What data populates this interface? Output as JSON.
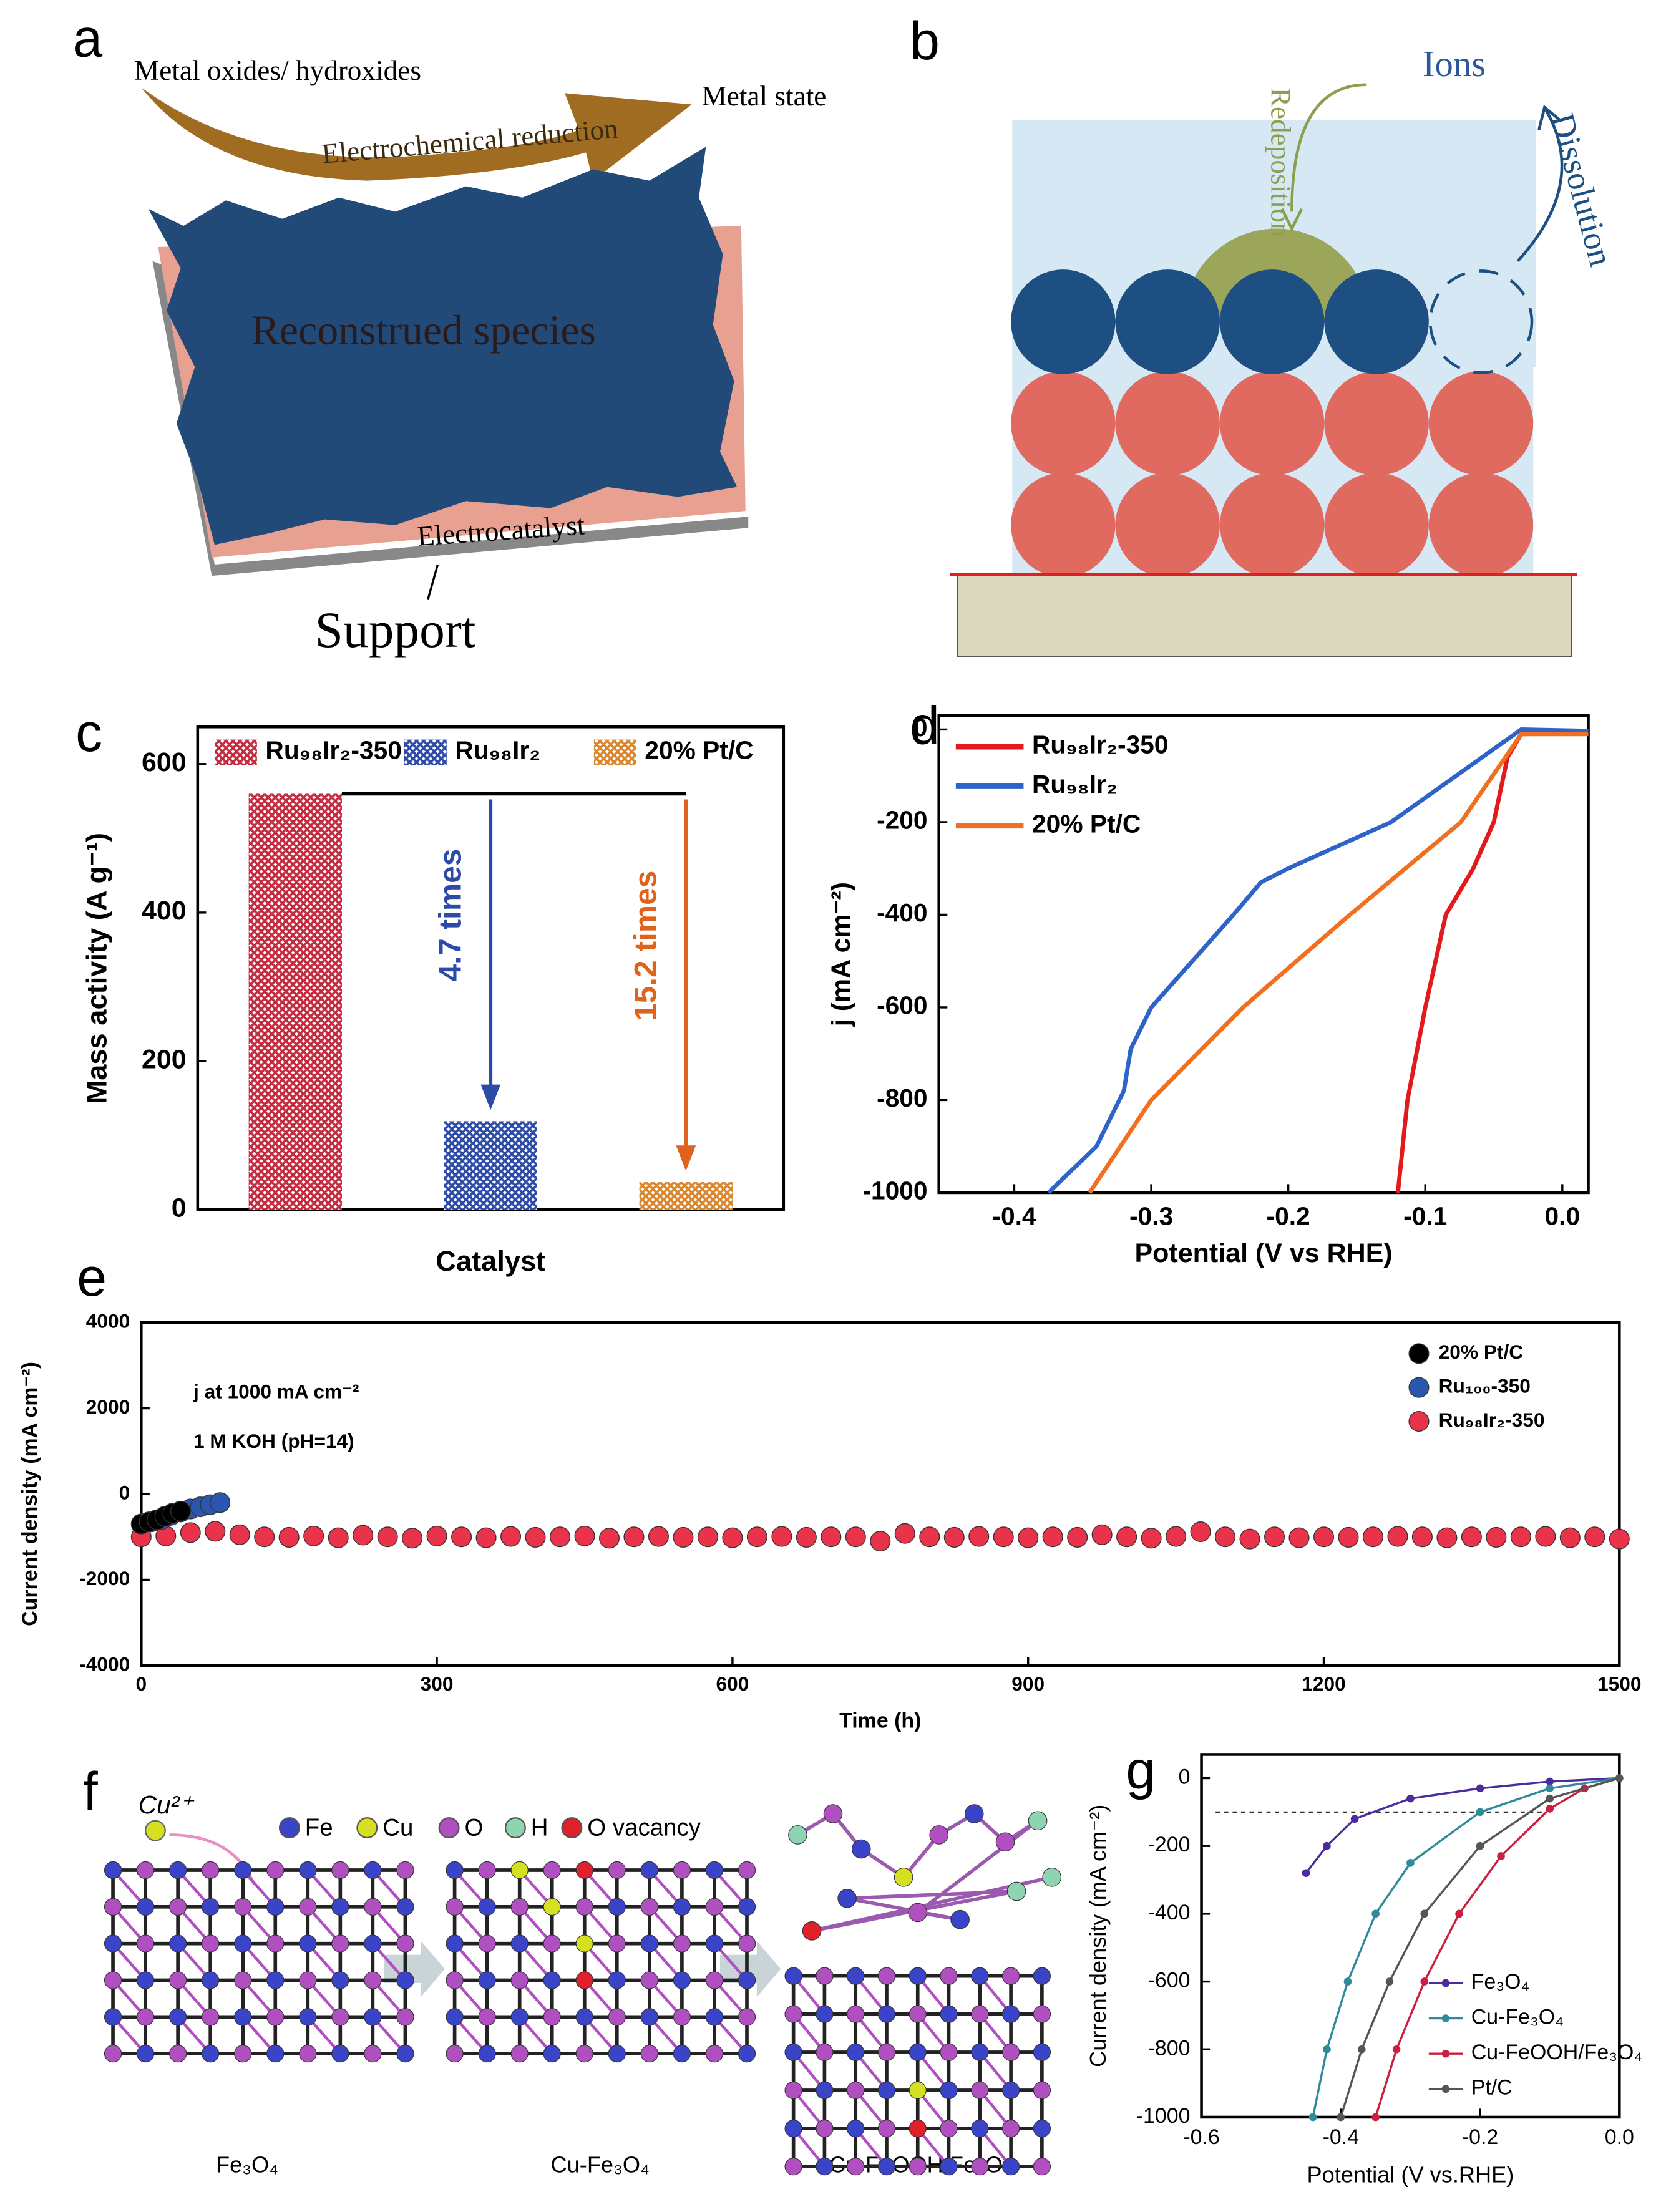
{
  "panel_labels": [
    "a",
    "b",
    "c",
    "d",
    "e",
    "f",
    "g"
  ],
  "diagram_a": {
    "arrow_start": "Metal oxides/ hydroxides",
    "arrow_end": "Metal state",
    "arrow_label": "Electrochemical reduction",
    "top_layer": "Reconstrued species",
    "middle_layer": "Electrocatalyst",
    "bottom_layer": "Support"
  },
  "diagram_b": {
    "ions": "Ions",
    "redeposition": "Redeposition",
    "dissolution": "Dissolution"
  },
  "diagram_f": {
    "ion": "Cu²⁺",
    "legend": [
      "Fe",
      "Cu",
      "O",
      "H",
      "O vacancy"
    ],
    "stages": [
      "Fe₃O₄",
      "Cu-Fe₃O₄",
      "Cu-FeOOH/Fe₃O₄"
    ]
  },
  "chart_data": [
    {
      "type": "bar",
      "xlabel": "Catalyst",
      "ylabel": "Mass activity (A g⁻¹)",
      "ylim": [
        0,
        650
      ],
      "yticks": [
        0,
        200,
        400,
        600
      ],
      "legend": "upper left",
      "series": [
        {
          "name": "Ru₉₈Ir₂-350",
          "color": "#c62a3e",
          "values": [
            560
          ]
        },
        {
          "name": "Ru₉₈Ir₂",
          "color": "#2c4aa8",
          "values": [
            119
          ]
        },
        {
          "name": "20% Pt/C",
          "color": "#d9862c",
          "values": [
            37
          ]
        }
      ],
      "annotations": [
        {
          "text": "4.7 times",
          "color": "#2c4aa8"
        },
        {
          "text": "15.2 times",
          "color": "#e0621c"
        }
      ]
    },
    {
      "type": "line",
      "xlabel": "Potential (V vs RHE)",
      "ylabel": "j (mA cm⁻²)",
      "xlim": [
        -0.455,
        0.019
      ],
      "ylim": [
        -1000,
        30
      ],
      "xticks": [
        -0.4,
        -0.3,
        -0.2,
        -0.1,
        {
          "value": 0,
          "label": "0.0"
        }
      ],
      "yticks": [
        -1000,
        -800,
        -600,
        -400,
        -200,
        0
      ],
      "legend": "upper left",
      "series": [
        {
          "name": "Ru₉₈Ir₂-350",
          "color": "#e31a1c",
          "x": [
            0.019,
            -0.03,
            -0.04,
            -0.05,
            -0.065,
            -0.085,
            -0.1,
            -0.113,
            -0.12
          ],
          "values": [
            -8,
            -10,
            -60,
            -200,
            -300,
            -400,
            -600,
            -800,
            -1000
          ]
        },
        {
          "name": "Ru₉₈Ir₂",
          "color": "#2e64c8",
          "x": [
            0.019,
            -0.03,
            -0.125,
            -0.2,
            -0.22,
            -0.24,
            -0.3,
            -0.315,
            -0.32,
            -0.34,
            -0.375
          ],
          "values": [
            -3,
            0,
            -200,
            -300,
            -330,
            -400,
            -600,
            -690,
            -780,
            -900,
            -1000
          ]
        },
        {
          "name": "20% Pt/C",
          "color": "#f07020",
          "x": [
            0.019,
            -0.03,
            -0.074,
            -0.155,
            -0.233,
            -0.3,
            -0.345
          ],
          "values": [
            -10,
            -10,
            -200,
            -400,
            -600,
            -800,
            -1000
          ]
        }
      ]
    },
    {
      "type": "scatter",
      "xlabel": "Time (h)",
      "ylabel": "Current density (mA cm⁻²)",
      "xlim": [
        0,
        1500
      ],
      "ylim": [
        -4000,
        4000
      ],
      "xticks": [
        0,
        300,
        600,
        900,
        1200,
        1500
      ],
      "yticks": [
        -4000,
        -2000,
        0,
        2000,
        4000
      ],
      "legend": "upper right",
      "annotations": [
        {
          "text": "j at 1000 mA cm⁻²"
        },
        {
          "text": "1 M KOH (pH=14)"
        }
      ],
      "series": [
        {
          "name": "20% Pt/C",
          "color": "#000000",
          "x": [
            0,
            8,
            16,
            24,
            32,
            40
          ],
          "values": [
            -700,
            -650,
            -600,
            -520,
            -450,
            -400
          ]
        },
        {
          "name": "Ru₁₀₀-350",
          "color": "#2a56b0",
          "x": [
            0,
            10,
            20,
            30,
            40,
            50,
            60,
            70,
            80
          ],
          "values": [
            -700,
            -650,
            -600,
            -500,
            -420,
            -350,
            -300,
            -250,
            -200
          ]
        },
        {
          "name": "Ru₉₈Ir₂-350",
          "color": "#e8334a",
          "x": [
            0,
            25,
            50,
            75,
            100,
            125,
            150,
            175,
            200,
            225,
            250,
            275,
            300,
            325,
            350,
            375,
            400,
            425,
            450,
            475,
            500,
            525,
            550,
            575,
            600,
            625,
            650,
            675,
            700,
            725,
            750,
            775,
            800,
            825,
            850,
            875,
            900,
            925,
            950,
            975,
            1000,
            1025,
            1050,
            1075,
            1100,
            1125,
            1150,
            1175,
            1200,
            1225,
            1250,
            1275,
            1300,
            1325,
            1350,
            1375,
            1400,
            1425,
            1450,
            1475,
            1500
          ],
          "values": [
            -1000,
            -980,
            -900,
            -870,
            -950,
            -1000,
            -1010,
            -980,
            -1020,
            -960,
            -1000,
            -1030,
            -980,
            -1000,
            -1020,
            -990,
            -1010,
            -1000,
            -980,
            -1030,
            -1000,
            -990,
            -1010,
            -1000,
            -1020,
            -1000,
            -990,
            -1010,
            -1000,
            -1000,
            -1100,
            -920,
            -1000,
            -1010,
            -990,
            -1000,
            -1020,
            -1000,
            -1010,
            -950,
            -1000,
            -1030,
            -990,
            -880,
            -1000,
            -1050,
            -1000,
            -1020,
            -1000,
            -1010,
            -1000,
            -990,
            -1000,
            -1020,
            -1000,
            -1010,
            -1000,
            -990,
            -1020,
            -1000,
            -1050
          ]
        }
      ]
    },
    {
      "type": "line",
      "markers": true,
      "xlabel": "Potential (V vs.RHE)",
      "ylabel": "Current density (mA cm⁻²)",
      "xlim": [
        -0.6,
        0
      ],
      "ylim": [
        -1000,
        70
      ],
      "xticks": [
        -0.6,
        -0.4,
        -0.2,
        {
          "value": 0,
          "label": "0.0"
        }
      ],
      "yticks": [
        -1000,
        -800,
        -600,
        -400,
        -200,
        0
      ],
      "legend": "lower right",
      "hline": -100,
      "series": [
        {
          "name": "Fe₃O₄",
          "color": "#4b2b9e",
          "x": [
            -0.45,
            -0.42,
            -0.38,
            -0.3,
            -0.2,
            -0.1,
            0
          ],
          "values": [
            -280,
            -200,
            -120,
            -60,
            -30,
            -10,
            0
          ]
        },
        {
          "name": "Cu-Fe₃O₄",
          "color": "#2e8b9a",
          "x": [
            -0.44,
            -0.42,
            -0.39,
            -0.35,
            -0.3,
            -0.2,
            -0.1,
            0
          ],
          "values": [
            -1000,
            -800,
            -600,
            -400,
            -250,
            -100,
            -30,
            0
          ]
        },
        {
          "name": "Cu-FeOOH/Fe₃O₄",
          "color": "#c8203f",
          "x": [
            -0.35,
            -0.32,
            -0.28,
            -0.23,
            -0.17,
            -0.1,
            -0.05,
            0
          ],
          "values": [
            -1000,
            -800,
            -600,
            -400,
            -230,
            -90,
            -30,
            0
          ]
        },
        {
          "name": "Pt/C",
          "color": "#555555",
          "x": [
            -0.4,
            -0.37,
            -0.33,
            -0.28,
            -0.2,
            -0.1,
            0
          ],
          "values": [
            -1000,
            -800,
            -600,
            -400,
            -200,
            -60,
            0
          ]
        }
      ]
    }
  ]
}
